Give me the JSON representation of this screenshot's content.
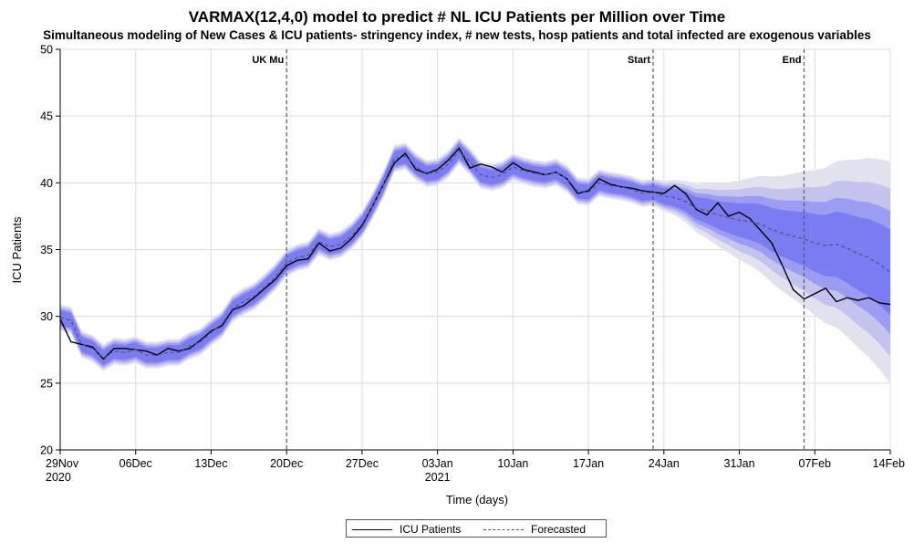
{
  "title": "VARMAX(12,4,0) model to predict # NL ICU Patients per Million over Time",
  "subtitle": "Simultaneous modeling of New Cases & ICU patients- stringency index, # new tests, hosp patients and total infected are exogenous variables",
  "colors": {
    "band_inner": "#7b7bf2",
    "band_mid": "#9c9cf2",
    "band_outer": "#c3c3ee",
    "band_outermost": "#e2e2ee",
    "actual_line": "#000000",
    "forecast_line": "#555577",
    "ref_line": "#555577",
    "grid": "#dcdcdc"
  },
  "chart_data": {
    "type": "line",
    "title": "VARMAX(12,4,0) model to predict # NL ICU Patients per Million over Time",
    "subtitle": "Simultaneous modeling of New Cases & ICU patients- stringency index, # new tests, hosp patients and total infected are exogenous variables",
    "xlabel": "Time (days)",
    "ylabel": "ICU Patients",
    "x_start": "2020-11-29",
    "x_end": "2021-02-14",
    "ylim": [
      20,
      50
    ],
    "yticks": [
      20,
      25,
      30,
      35,
      40,
      45,
      50
    ],
    "xticks": [
      {
        "date": "2020-11-29",
        "label": "29Nov",
        "label2": "2020"
      },
      {
        "date": "2020-12-06",
        "label": "06Dec",
        "label2": ""
      },
      {
        "date": "2020-12-13",
        "label": "13Dec",
        "label2": ""
      },
      {
        "date": "2020-12-20",
        "label": "20Dec",
        "label2": ""
      },
      {
        "date": "2020-12-27",
        "label": "27Dec",
        "label2": ""
      },
      {
        "date": "2021-01-03",
        "label": "03Jan",
        "label2": "2021"
      },
      {
        "date": "2021-01-10",
        "label": "10Jan",
        "label2": ""
      },
      {
        "date": "2021-01-17",
        "label": "17Jan",
        "label2": ""
      },
      {
        "date": "2021-01-24",
        "label": "24Jan",
        "label2": ""
      },
      {
        "date": "2021-01-31",
        "label": "31Jan",
        "label2": ""
      },
      {
        "date": "2021-02-07",
        "label": "07Feb",
        "label2": ""
      },
      {
        "date": "2021-02-14",
        "label": "14Feb",
        "label2": ""
      }
    ],
    "grid": true,
    "legend_position": "bottom",
    "reference_lines": [
      {
        "date": "2020-12-20",
        "label": "UK Mu"
      },
      {
        "date": "2021-01-23",
        "label": "Start"
      },
      {
        "date": "2021-02-06",
        "label": "End"
      }
    ],
    "series": [
      {
        "name": "ICU Patients",
        "style": "solid",
        "x": [
          "2020-11-29",
          "2020-11-30",
          "2020-12-01",
          "2020-12-02",
          "2020-12-03",
          "2020-12-04",
          "2020-12-05",
          "2020-12-06",
          "2020-12-07",
          "2020-12-08",
          "2020-12-09",
          "2020-12-10",
          "2020-12-11",
          "2020-12-12",
          "2020-12-13",
          "2020-12-14",
          "2020-12-15",
          "2020-12-16",
          "2020-12-17",
          "2020-12-18",
          "2020-12-19",
          "2020-12-20",
          "2020-12-21",
          "2020-12-22",
          "2020-12-23",
          "2020-12-24",
          "2020-12-25",
          "2020-12-26",
          "2020-12-27",
          "2020-12-28",
          "2020-12-29",
          "2020-12-30",
          "2020-12-31",
          "2021-01-01",
          "2021-01-02",
          "2021-01-03",
          "2021-01-04",
          "2021-01-05",
          "2021-01-06",
          "2021-01-07",
          "2021-01-08",
          "2021-01-09",
          "2021-01-10",
          "2021-01-11",
          "2021-01-12",
          "2021-01-13",
          "2021-01-14",
          "2021-01-15",
          "2021-01-16",
          "2021-01-17",
          "2021-01-18",
          "2021-01-19",
          "2021-01-20",
          "2021-01-21",
          "2021-01-22",
          "2021-01-23",
          "2021-01-24",
          "2021-01-25",
          "2021-01-26",
          "2021-01-27",
          "2021-01-28",
          "2021-01-29",
          "2021-01-30",
          "2021-01-31",
          "2021-02-01",
          "2021-02-02",
          "2021-02-03",
          "2021-02-04",
          "2021-02-05",
          "2021-02-06",
          "2021-02-07",
          "2021-02-08",
          "2021-02-09",
          "2021-02-10",
          "2021-02-11",
          "2021-02-12",
          "2021-02-13",
          "2021-02-14"
        ],
        "y": [
          29.8,
          28.1,
          27.9,
          27.7,
          26.8,
          27.6,
          27.6,
          27.5,
          27.4,
          27.1,
          27.6,
          27.4,
          27.6,
          28.2,
          28.9,
          29.3,
          30.5,
          30.8,
          31.4,
          32.1,
          32.8,
          33.8,
          34.2,
          34.3,
          35.5,
          34.9,
          35.1,
          35.8,
          36.8,
          38.3,
          39.9,
          41.5,
          42.2,
          41.0,
          40.7,
          41.0,
          41.7,
          42.6,
          41.1,
          41.4,
          41.2,
          40.8,
          41.5,
          41.0,
          40.8,
          40.6,
          40.8,
          40.3,
          39.2,
          39.4,
          40.3,
          39.9,
          39.7,
          39.6,
          39.4,
          39.3,
          39.2,
          39.8,
          39.2,
          38.0,
          37.6,
          38.5,
          37.5,
          37.8,
          37.3,
          36.4,
          35.5,
          33.8,
          32.0,
          31.3,
          31.7,
          32.1,
          31.1,
          31.4,
          31.2,
          31.4,
          31.0,
          30.9
        ]
      },
      {
        "name": "Forecasted",
        "style": "dashed",
        "x": [
          "2020-11-29",
          "2020-11-30",
          "2020-12-01",
          "2020-12-02",
          "2020-12-03",
          "2020-12-04",
          "2020-12-05",
          "2020-12-06",
          "2020-12-07",
          "2020-12-08",
          "2020-12-09",
          "2020-12-10",
          "2020-12-11",
          "2020-12-12",
          "2020-12-13",
          "2020-12-14",
          "2020-12-15",
          "2020-12-16",
          "2020-12-17",
          "2020-12-18",
          "2020-12-19",
          "2020-12-20",
          "2020-12-21",
          "2020-12-22",
          "2020-12-23",
          "2020-12-24",
          "2020-12-25",
          "2020-12-26",
          "2020-12-27",
          "2020-12-28",
          "2020-12-29",
          "2020-12-30",
          "2020-12-31",
          "2021-01-01",
          "2021-01-02",
          "2021-01-03",
          "2021-01-04",
          "2021-01-05",
          "2021-01-06",
          "2021-01-07",
          "2021-01-08",
          "2021-01-09",
          "2021-01-10",
          "2021-01-11",
          "2021-01-12",
          "2021-01-13",
          "2021-01-14",
          "2021-01-15",
          "2021-01-16",
          "2021-01-17",
          "2021-01-18",
          "2021-01-19",
          "2021-01-20",
          "2021-01-21",
          "2021-01-22",
          "2021-01-23",
          "2021-01-24",
          "2021-01-25",
          "2021-01-26",
          "2021-01-27",
          "2021-01-28",
          "2021-01-29",
          "2021-01-30",
          "2021-01-31",
          "2021-02-01",
          "2021-02-02",
          "2021-02-03",
          "2021-02-04",
          "2021-02-05",
          "2021-02-06",
          "2021-02-07",
          "2021-02-08",
          "2021-02-09",
          "2021-02-10",
          "2021-02-11",
          "2021-02-12",
          "2021-02-13",
          "2021-02-14"
        ],
        "y": [
          29.9,
          29.7,
          27.9,
          27.6,
          26.9,
          27.4,
          27.3,
          27.5,
          27.1,
          27.1,
          27.3,
          27.3,
          27.8,
          28.1,
          28.8,
          29.4,
          30.6,
          31.1,
          31.5,
          32.2,
          33.0,
          34.0,
          34.4,
          34.6,
          35.6,
          35.2,
          35.4,
          36.0,
          36.9,
          38.3,
          39.9,
          41.8,
          42.0,
          41.2,
          40.7,
          40.8,
          41.4,
          42.4,
          41.6,
          40.6,
          40.4,
          40.6,
          41.2,
          40.9,
          40.7,
          40.6,
          40.8,
          40.3,
          39.4,
          39.3,
          40.0,
          39.8,
          39.7,
          39.5,
          39.2,
          39.3,
          39.0,
          38.9,
          38.6,
          38.1,
          37.9,
          37.6,
          37.4,
          37.2,
          37.1,
          36.9,
          36.5,
          36.2,
          36.0,
          35.8,
          35.5,
          35.3,
          35.4,
          35.1,
          34.7,
          34.4,
          33.9,
          33.3
        ]
      }
    ],
    "confidence_bands": [
      {
        "level": "outermost",
        "half_width_fit": 1.0,
        "half_width_end": 8.3
      },
      {
        "level": "outer",
        "half_width_fit": 0.85,
        "half_width_end": 6.3
      },
      {
        "level": "mid",
        "half_width_fit": 0.7,
        "half_width_end": 4.6
      },
      {
        "level": "inner",
        "half_width_fit": 0.55,
        "half_width_end": 3.2
      }
    ],
    "legend": [
      "ICU Patients",
      "Forecasted"
    ]
  }
}
